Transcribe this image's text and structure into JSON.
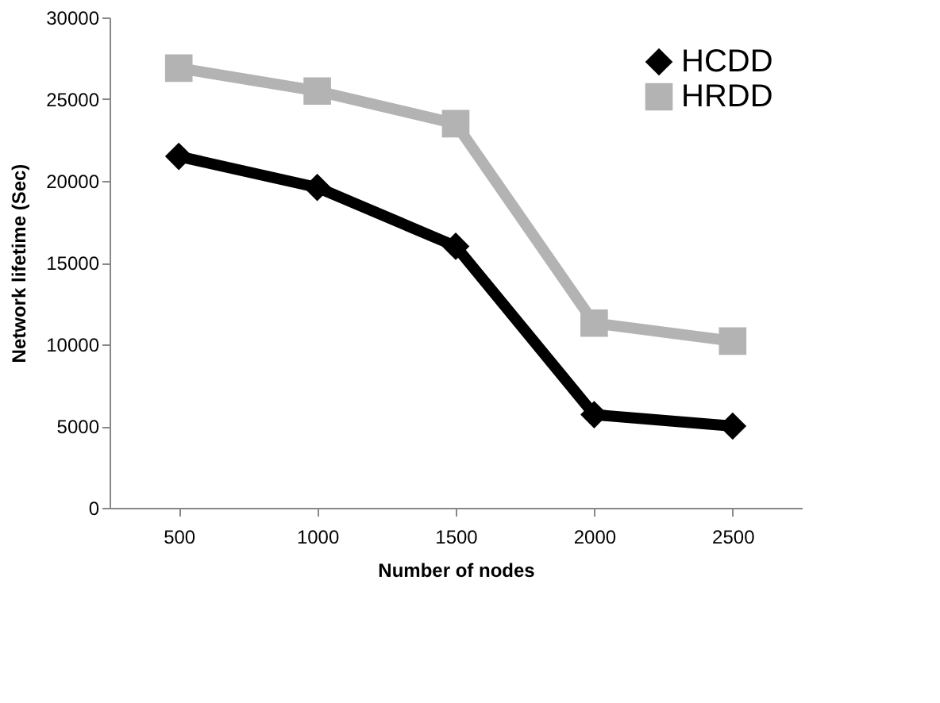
{
  "chart_data": {
    "type": "line",
    "xlabel": "Number of nodes",
    "ylabel": "Network lifetime (Sec)",
    "categories": [
      "500",
      "1000",
      "1500",
      "2000",
      "2500"
    ],
    "series": [
      {
        "name": "HCDD",
        "color": "#000000",
        "marker": "diamond",
        "values": [
          21500,
          19600,
          16000,
          5700,
          5000
        ]
      },
      {
        "name": "HRDD",
        "color": "#b3b3b3",
        "marker": "square",
        "values": [
          26900,
          25500,
          23500,
          11300,
          10200
        ]
      }
    ],
    "ylim": [
      0,
      30000
    ],
    "yticks": [
      0,
      5000,
      10000,
      15000,
      20000,
      25000,
      30000
    ],
    "grid": false,
    "legend": "top right",
    "line_style": "solid"
  }
}
